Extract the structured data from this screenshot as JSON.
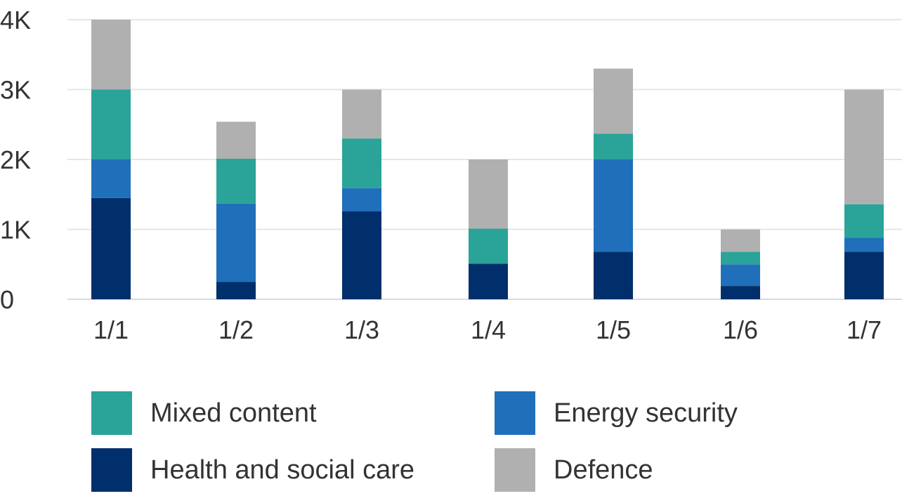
{
  "chart_data": {
    "type": "bar",
    "stacked": true,
    "categories": [
      "1/1",
      "1/2",
      "1/3",
      "1/4",
      "1/5",
      "1/6",
      "1/7"
    ],
    "series": [
      {
        "name": "Health and social care",
        "color": "#002f6c",
        "values": [
          1450,
          250,
          1260,
          510,
          680,
          190,
          680
        ]
      },
      {
        "name": "Energy security",
        "color": "#1f6fba",
        "values": [
          550,
          1120,
          330,
          0,
          1320,
          310,
          200
        ]
      },
      {
        "name": "Mixed content",
        "color": "#2aa398",
        "values": [
          1000,
          640,
          710,
          500,
          370,
          180,
          480
        ]
      },
      {
        "name": "Defence",
        "color": "#b0b0b0",
        "values": [
          1000,
          530,
          700,
          990,
          930,
          320,
          1640
        ]
      }
    ],
    "y_ticks": [
      "0",
      "1K",
      "2K",
      "3K",
      "4K"
    ],
    "ylim": [
      0,
      4000
    ],
    "title": "",
    "xlabel": "",
    "ylabel": "",
    "grid": true,
    "legend_position": "bottom"
  },
  "legend": [
    {
      "label": "Mixed content",
      "color": "#2aa398"
    },
    {
      "label": "Energy security",
      "color": "#1f6fba"
    },
    {
      "label": "Health and social care",
      "color": "#002f6c"
    },
    {
      "label": "Defence",
      "color": "#b0b0b0"
    }
  ]
}
